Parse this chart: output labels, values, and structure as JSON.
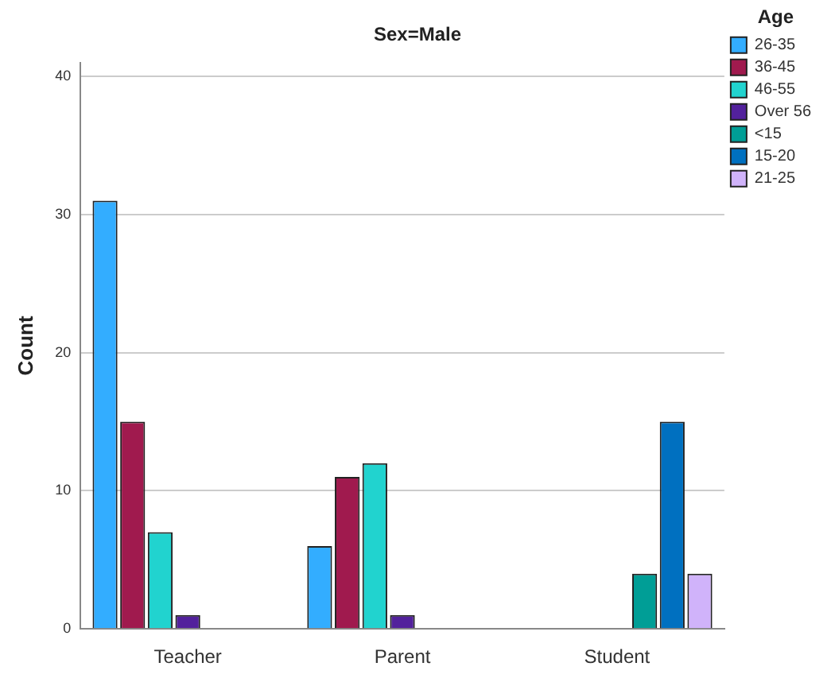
{
  "chart_data": {
    "type": "bar",
    "title": "Sex=Male",
    "ylabel": "Count",
    "legend_title": "Age",
    "categories": [
      "Teacher",
      "Parent",
      "Student"
    ],
    "series": [
      {
        "name": "26-35",
        "color": "#33adff",
        "values": [
          31,
          6,
          null
        ]
      },
      {
        "name": "36-45",
        "color": "#a01a4e",
        "values": [
          15,
          11,
          null
        ]
      },
      {
        "name": "46-55",
        "color": "#21d3cf",
        "values": [
          7,
          12,
          null
        ]
      },
      {
        "name": "Over 56",
        "color": "#52219c",
        "values": [
          1,
          1,
          null
        ]
      },
      {
        "name": "<15",
        "color": "#009e96",
        "values": [
          null,
          null,
          4
        ]
      },
      {
        "name": "15-20",
        "color": "#0070c0",
        "values": [
          null,
          null,
          15
        ]
      },
      {
        "name": "21-25",
        "color": "#d0b3fa",
        "values": [
          null,
          null,
          4
        ]
      }
    ],
    "ylim": [
      0,
      41
    ],
    "yticks": [
      0,
      10,
      20,
      30,
      40
    ],
    "grid": "y",
    "legend": "top right"
  }
}
